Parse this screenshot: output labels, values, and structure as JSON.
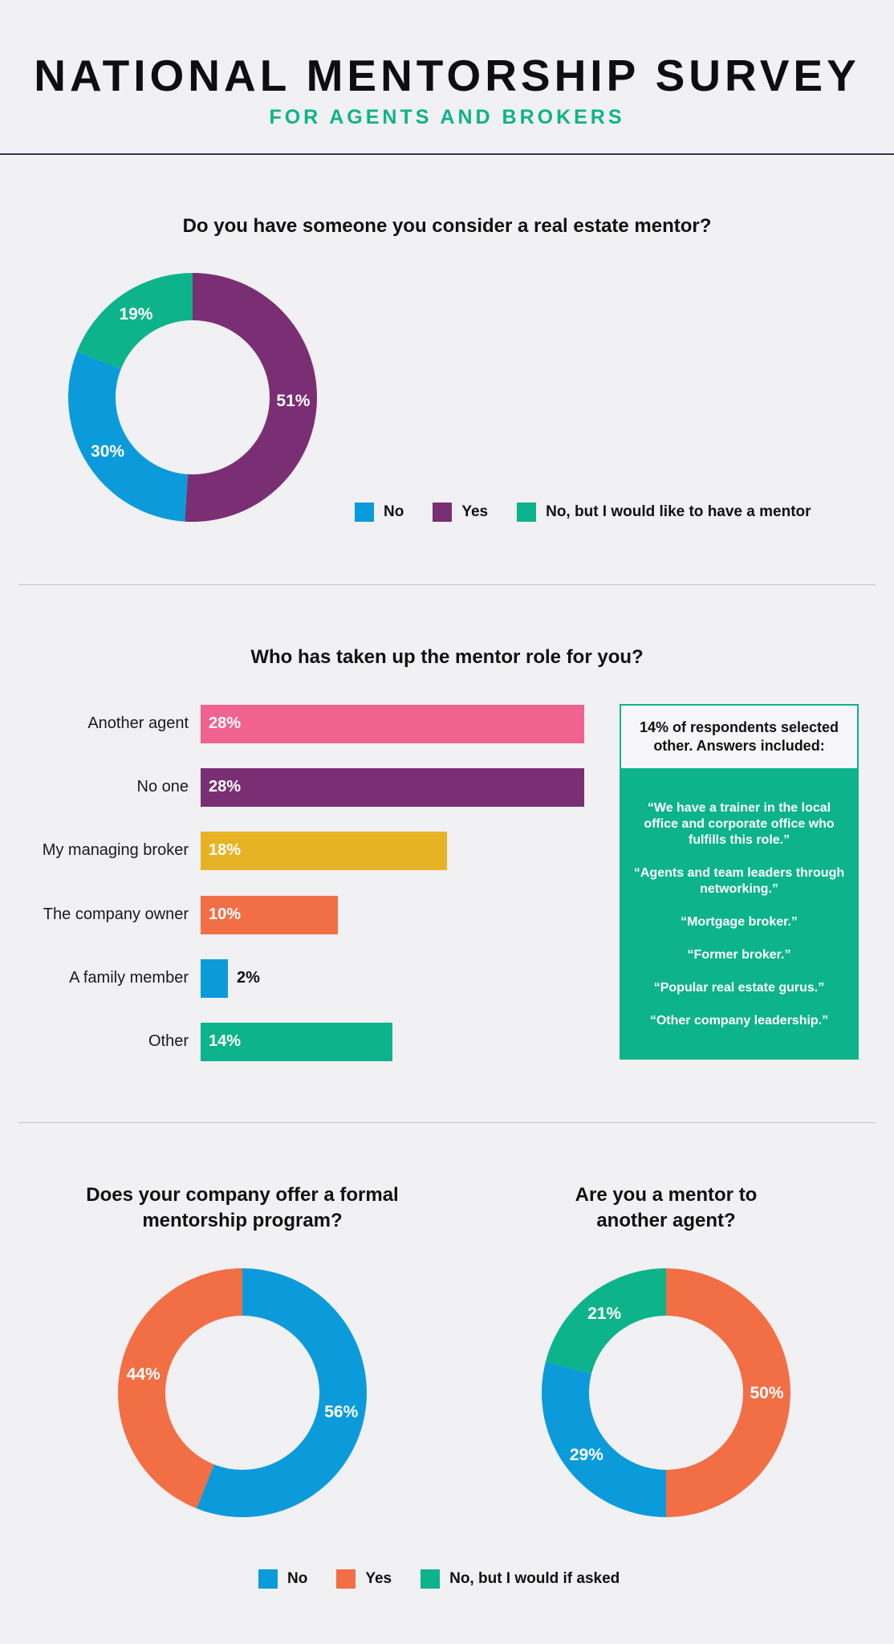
{
  "header": {
    "title": "NATIONAL MENTORSHIP SURVEY",
    "subtitle": "FOR AGENTS AND BROKERS"
  },
  "colors": {
    "blue": "#0b9bdb",
    "purple": "#7a2e74",
    "green": "#0db38a",
    "pink": "#f0628f",
    "gold": "#e7b224",
    "orange": "#f26e45"
  },
  "chart_data": [
    {
      "type": "pie",
      "title": "Do you have someone you consider a real estate mentor?",
      "slices": [
        {
          "label": "Yes",
          "value": 51,
          "display": "51%",
          "color": "#7a2e74"
        },
        {
          "label": "No",
          "value": 30,
          "display": "30%",
          "color": "#0b9bdb"
        },
        {
          "label": "No, but I would like to have a mentor",
          "value": 19,
          "display": "19%",
          "color": "#0db38a"
        }
      ],
      "legend": [
        {
          "label": "No",
          "color": "#0b9bdb"
        },
        {
          "label": "Yes",
          "color": "#7a2e74"
        },
        {
          "label": "No, but I would like to have a mentor",
          "color": "#0db38a"
        }
      ]
    },
    {
      "type": "bar",
      "title": "Who has taken up the mentor role for you?",
      "categories": [
        "Another agent",
        "No one",
        "My managing broker",
        "The company owner",
        "A family member",
        "Other"
      ],
      "values": [
        28,
        28,
        18,
        10,
        2,
        14
      ],
      "display": [
        "28%",
        "28%",
        "18%",
        "10%",
        "2%",
        "14%"
      ],
      "colors": [
        "#f0628f",
        "#7a2e74",
        "#e7b224",
        "#f26e45",
        "#0b9bdb",
        "#0db38a"
      ],
      "callout": {
        "heading": "14% of respondents selected other. Answers included:",
        "quotes": [
          "“We have a trainer in the local office and corporate office who fulfills this role.”",
          "“Agents and team leaders through networking.”",
          "“Mortgage broker.”",
          "“Former broker.”",
          "“Popular real estate gurus.”",
          "“Other company leadership.”"
        ]
      }
    },
    {
      "type": "pie",
      "title": "Does your company offer a formal mentorship program?",
      "slices": [
        {
          "label": "No",
          "value": 56,
          "display": "56%",
          "color": "#0b9bdb"
        },
        {
          "label": "Yes",
          "value": 44,
          "display": "44%",
          "color": "#f26e45"
        }
      ]
    },
    {
      "type": "pie",
      "title": "Are you a mentor to another agent?",
      "slices": [
        {
          "label": "Yes",
          "value": 50,
          "display": "50%",
          "color": "#f26e45"
        },
        {
          "label": "No",
          "value": 29,
          "display": "29%",
          "color": "#0b9bdb"
        },
        {
          "label": "No, but I would if asked",
          "value": 21,
          "display": "21%",
          "color": "#0db38a"
        }
      ]
    }
  ],
  "bottom_legend": [
    {
      "label": "No",
      "color": "#0b9bdb"
    },
    {
      "label": "Yes",
      "color": "#f26e45"
    },
    {
      "label": "No, but I would if asked",
      "color": "#0db38a"
    }
  ]
}
